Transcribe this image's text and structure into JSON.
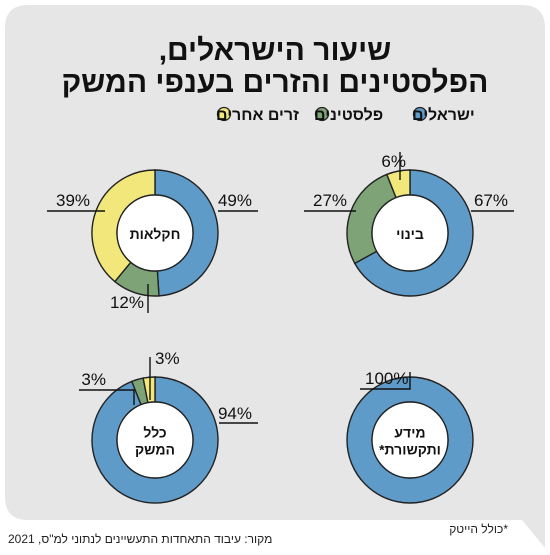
{
  "title_line1": "שיעור הישראלים,",
  "title_line2": "הפלסטינים והזרים בענפי המשק",
  "colors": {
    "background": "#e6e6e6",
    "israelis": "#5f9bc8",
    "palestinians": "#7da377",
    "foreigners": "#f1e77b"
  },
  "footnote": "*כולל הייטק",
  "source": "מקור: עיבוד התאחדות התעשיינים לנתוני למ\"ס, 2021",
  "chart_data": {
    "type": "pie",
    "legend": {
      "placement": "top",
      "entries": [
        {
          "key": "israelis",
          "label": "ישראלים"
        },
        {
          "key": "palestinians",
          "label": "פלסטינים"
        },
        {
          "key": "foreigners",
          "label": "זרים אחרים"
        }
      ]
    },
    "charts": [
      {
        "id": "agriculture",
        "title_lines": [
          "חקלאות"
        ],
        "slices": [
          {
            "series": "israelis",
            "value": 49,
            "label": "49%"
          },
          {
            "series": "palestinians",
            "value": 12,
            "label": "12%"
          },
          {
            "series": "foreigners",
            "value": 39,
            "label": "39%"
          }
        ]
      },
      {
        "id": "construction",
        "title_lines": [
          "בינוי"
        ],
        "slices": [
          {
            "series": "israelis",
            "value": 67,
            "label": "67%"
          },
          {
            "series": "palestinians",
            "value": 27,
            "label": "27%"
          },
          {
            "series": "foreigners",
            "value": 6,
            "label": "6%"
          }
        ]
      },
      {
        "id": "total-economy",
        "title_lines": [
          "כלל",
          "המשק"
        ],
        "slices": [
          {
            "series": "israelis",
            "value": 94,
            "label": "94%"
          },
          {
            "series": "palestinians",
            "value": 3,
            "label": "3%"
          },
          {
            "series": "foreigners",
            "value": 3,
            "label": "3%"
          }
        ]
      },
      {
        "id": "info-comm",
        "title_lines": [
          "מידע",
          "ותקשורת*"
        ],
        "slices": [
          {
            "series": "israelis",
            "value": 100,
            "label": "100%"
          }
        ]
      }
    ]
  }
}
